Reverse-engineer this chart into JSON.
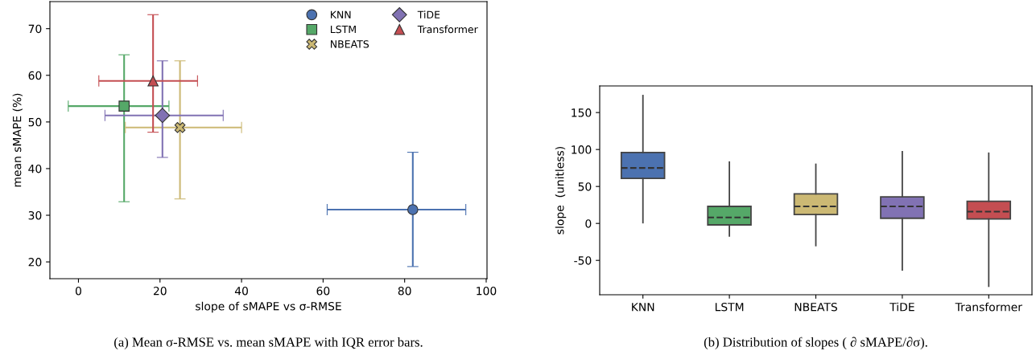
{
  "chart_data": [
    {
      "type": "scatter",
      "xlabel": "slope of sMAPE vs σ-RMSE",
      "ylabel": "mean sMAPE (%)",
      "xlim": [
        -7,
        100.2
      ],
      "xticks": [
        0,
        20,
        40,
        60,
        80,
        100
      ],
      "ylim": [
        16.4,
        75.8
      ],
      "yticks": [
        20,
        30,
        40,
        50,
        60,
        70
      ],
      "grid": false,
      "legend": "top right",
      "annotations": [
        "(a) Mean σ-RMSE vs. mean sMAPE with IQR error bars."
      ],
      "series": [
        {
          "name": "KNN",
          "color": "#4c72b0",
          "marker": "circle",
          "x": [
            82
          ],
          "values": [
            31.2
          ],
          "errors": [
            [
              19,
              43.5
            ]
          ],
          "xerrors": [
            [
              61,
              95
            ]
          ]
        },
        {
          "name": "LSTM",
          "color": "#55a868",
          "marker": "square",
          "x": [
            11.2
          ],
          "values": [
            53.4
          ],
          "errors": [
            [
              32.9,
              64.4
            ]
          ],
          "xerrors": [
            [
              -2.5,
              22.2
            ]
          ]
        },
        {
          "name": "NBEATS",
          "color": "#ccb974",
          "marker": "cross",
          "x": [
            24.9
          ],
          "values": [
            48.8
          ],
          "errors": [
            [
              33.5,
              63.1
            ]
          ],
          "xerrors": [
            [
              11.5,
              40
            ]
          ]
        },
        {
          "name": "TiDE",
          "color": "#8172b3",
          "marker": "diamond",
          "x": [
            20.6
          ],
          "values": [
            51.4
          ],
          "errors": [
            [
              42.4,
              63.1
            ]
          ],
          "xerrors": [
            [
              6.5,
              35.5
            ]
          ]
        },
        {
          "name": "Transformer",
          "color": "#c44e52",
          "marker": "triangle",
          "x": [
            18.3
          ],
          "values": [
            58.8
          ],
          "errors": [
            [
              47.8,
              73
            ]
          ],
          "xerrors": [
            [
              5,
              29.2
            ]
          ]
        }
      ]
    },
    {
      "type": "box",
      "ylabel": "slope  (unitless)",
      "categories": [
        "KNN",
        "LSTM",
        "NBEATS",
        "TiDE",
        "Transformer"
      ],
      "ylim": [
        -96.5,
        186
      ],
      "yticks": [
        -50,
        0,
        50,
        100,
        150
      ],
      "grid": false,
      "colors": [
        "#4c72b0",
        "#55a868",
        "#ccb974",
        "#8172b3",
        "#c44e52"
      ],
      "annotations": [
        "(b) Distribution of slopes ( ∂ sMAPE/∂σ)."
      ],
      "boxes": [
        {
          "low": 1,
          "q1": 61,
          "median": 75,
          "q3": 96,
          "high": 173
        },
        {
          "low": -17,
          "q1": -2,
          "median": 8,
          "q3": 23,
          "high": 83
        },
        {
          "low": -30,
          "q1": 12,
          "median": 23,
          "q3": 40,
          "high": 80
        },
        {
          "low": -63,
          "q1": 7,
          "median": 23,
          "q3": 36,
          "high": 97
        },
        {
          "low": -85,
          "q1": 6,
          "median": 16,
          "q3": 30,
          "high": 95
        }
      ]
    }
  ]
}
